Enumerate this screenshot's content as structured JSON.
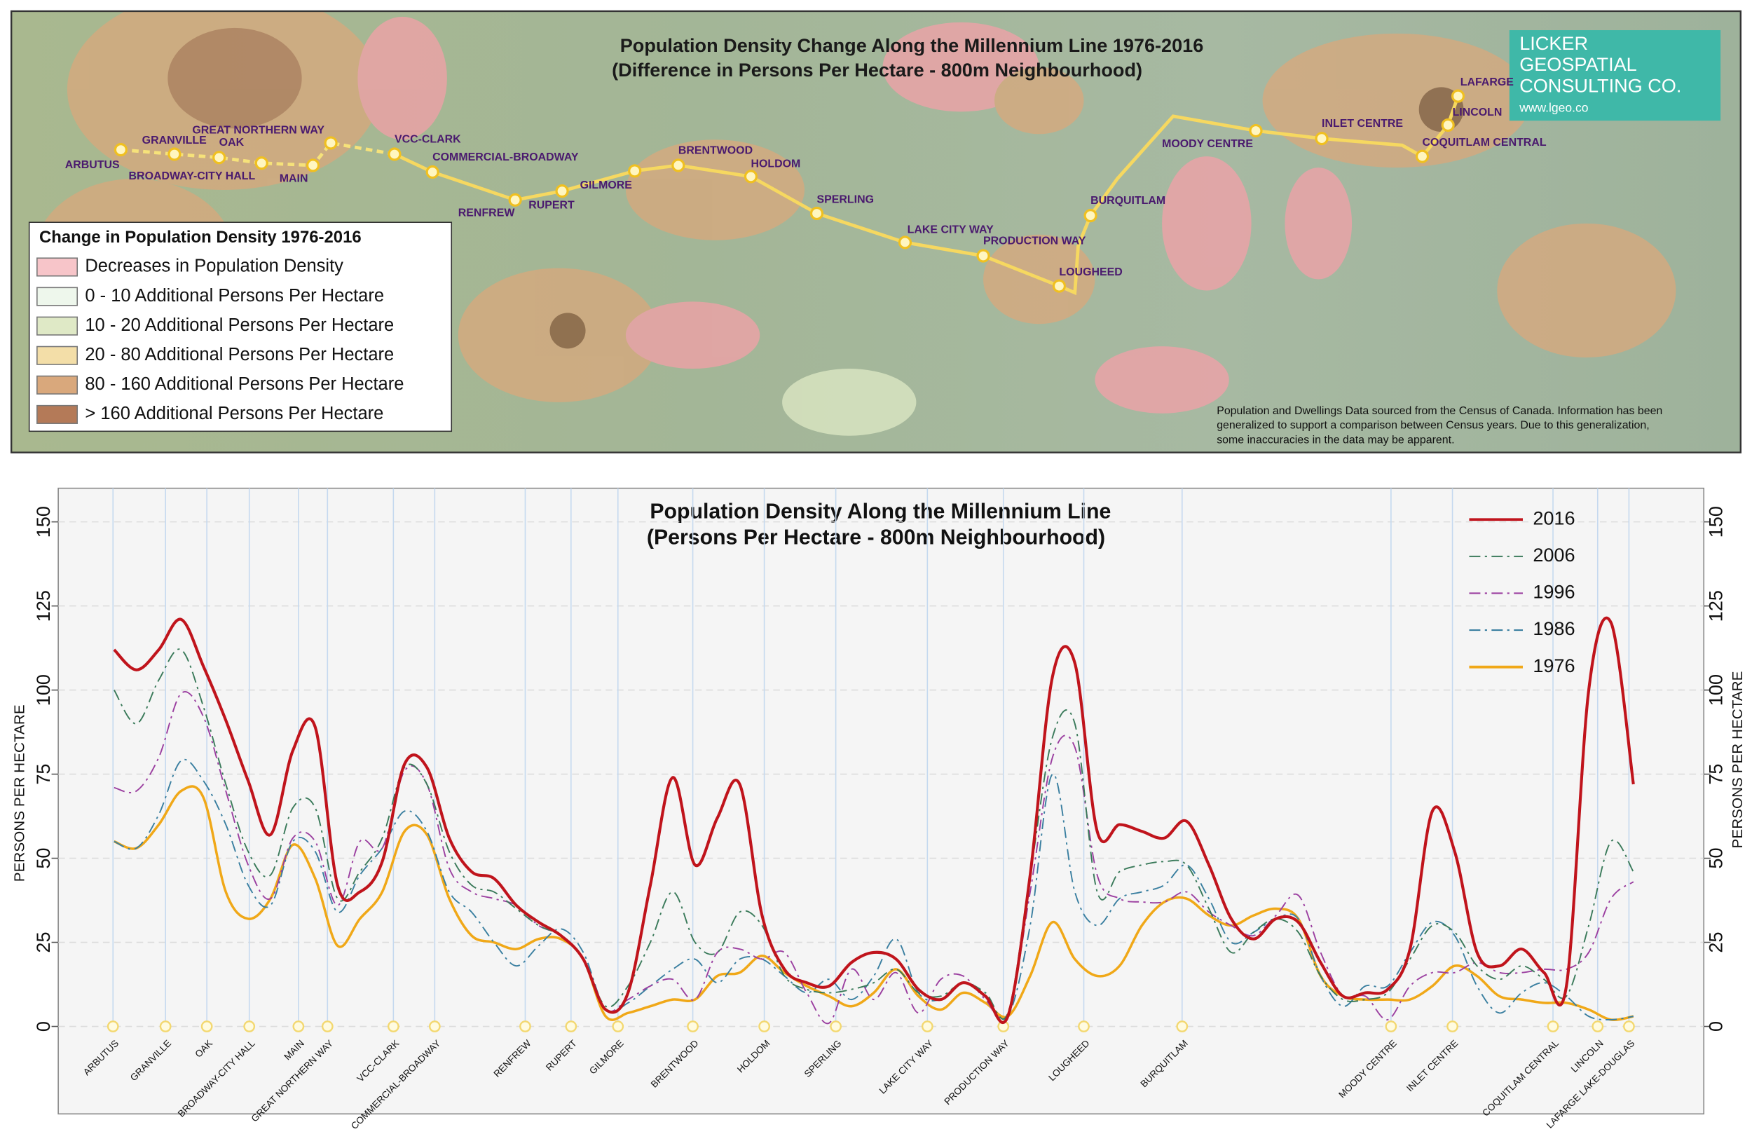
{
  "map": {
    "title": [
      "Population Density Change  Along the Millennium Line 1976-2016",
      "(Difference in Persons Per Hectare - 800m Neighbourhood)"
    ],
    "legend": {
      "title": "Change in Population Density 1976-2016",
      "items": [
        {
          "label": "Decreases in Population Density",
          "color": "#f7c5c9"
        },
        {
          "label": " 0 - 10 Additional Persons Per Hectare",
          "color": "#eef7ec"
        },
        {
          "label": "10 - 20 Additional Persons Per Hectare",
          "color": "#dfe9c6"
        },
        {
          "label": "20 - 80 Additional Persons Per Hectare",
          "color": "#f3dea8"
        },
        {
          "label": "80 - 160 Additional Persons Per Hectare",
          "color": "#d9a87c"
        },
        {
          "label": "> 160 Additional Persons Per Hectare",
          "color": "#b47a58"
        }
      ]
    },
    "stations": [
      "ARBUTUS",
      "GRANVILLE",
      "OAK",
      "BROADWAY-CITY HALL",
      "MAIN",
      "GREAT NORTHERN WAY",
      "VCC-CLARK",
      "COMMERCIAL-BROADWAY",
      "RENFREW",
      "RUPERT",
      "GILMORE",
      "BRENTWOOD",
      "HOLDOM",
      "SPERLING",
      "LAKE CITY WAY",
      "PRODUCTION WAY",
      "LOUGHEED",
      "BURQUITLAM",
      "MOODY CENTRE",
      "INLET CENTRE",
      "COQUITLAM CENTRAL",
      "LINCOLN",
      "LAFARGE"
    ],
    "note": [
      "Population and Dwellings Data sourced from the Census of Canada. Information has been",
      "generalized to support a comparison between Census years.  Due to this generalization,",
      "some inaccuracies in the data may be apparent."
    ],
    "logo": [
      "LICKER",
      "GEOSPATIAL",
      "CONSULTING CO.",
      "www.lgeo.co"
    ]
  },
  "chart_data": {
    "type": "line",
    "title": [
      "Population Density  Along the Millennium Line",
      "(Persons Per Hectare - 800m Neighbourhood)"
    ],
    "ylabel": "PERSONS PER HECTARE",
    "x": [
      5,
      7,
      9,
      11,
      13,
      15,
      17,
      19,
      21,
      23,
      25,
      27,
      29,
      31,
      33,
      35,
      37,
      39,
      41,
      43,
      45,
      47,
      49,
      51,
      53,
      55,
      57,
      59,
      61,
      63,
      65,
      67,
      69,
      71,
      73,
      75,
      77,
      79,
      81,
      83,
      85,
      87,
      89,
      91,
      93,
      95,
      97,
      99,
      101,
      103,
      105,
      107,
      109,
      111,
      113,
      115,
      117,
      119,
      121,
      123,
      125,
      127,
      129,
      131,
      133,
      135,
      137,
      139,
      141
    ],
    "xlim": [
      0,
      147.3
    ],
    "xticks": [
      {
        "value": 4.9,
        "label": "ARBUTUS"
      },
      {
        "value": 9.6,
        "label": "GRANVILLE"
      },
      {
        "value": 13.3,
        "label": "OAK"
      },
      {
        "value": 17.1,
        "label": "BROADWAY-CITY HALL"
      },
      {
        "value": 21.5,
        "label": "MAIN"
      },
      {
        "value": 24.1,
        "label": "GREAT NORTHERN WAY"
      },
      {
        "value": 30,
        "label": "VCC-CLARK"
      },
      {
        "value": 33.7,
        "label": "COMMERCIAL-BROADWAY"
      },
      {
        "value": 41.8,
        "label": "RENFREW"
      },
      {
        "value": 45.9,
        "label": "RUPERT"
      },
      {
        "value": 50.1,
        "label": "GILMORE"
      },
      {
        "value": 56.8,
        "label": "BRENTWOOD"
      },
      {
        "value": 63.2,
        "label": "HOLDOM"
      },
      {
        "value": 69.6,
        "label": "SPERLING"
      },
      {
        "value": 77.8,
        "label": "LAKE CITY WAY"
      },
      {
        "value": 84.6,
        "label": "PRODUCTION WAY"
      },
      {
        "value": 91.8,
        "label": "LOUGHEED"
      },
      {
        "value": 100.6,
        "label": "BURQUITLAM"
      },
      {
        "value": 119.3,
        "label": "MOODY CENTRE"
      },
      {
        "value": 124.8,
        "label": "INLET CENTRE"
      },
      {
        "value": 133.8,
        "label": "COQUITLAM CENTRAL"
      },
      {
        "value": 137.8,
        "label": "LINCOLN"
      },
      {
        "value": 140.6,
        "label": "LAFARGE LAKE-DOUGLAS"
      }
    ],
    "ylim": [
      -26,
      160
    ],
    "yticks": [
      0,
      25,
      50,
      75,
      100,
      125,
      150
    ],
    "grid": true,
    "legend": "upper right",
    "series": [
      {
        "name": "2016",
        "color": "#c0141c",
        "style": "solid",
        "values": [
          112,
          106,
          112,
          121,
          107,
          91,
          73,
          57,
          82,
          89,
          42,
          40,
          49,
          78,
          77,
          56,
          46,
          44,
          36,
          31,
          27,
          20,
          5,
          10,
          42,
          74,
          48,
          62,
          72,
          33,
          17,
          13,
          12,
          19,
          22,
          20,
          11,
          8,
          13,
          9,
          3,
          45,
          104,
          108,
          58,
          60,
          58,
          56,
          61,
          48,
          32,
          26,
          32,
          31,
          19,
          9,
          10,
          11,
          23,
          64,
          52,
          22,
          18,
          23,
          16,
          12,
          100,
          120,
          72
        ]
      },
      {
        "name": "2006",
        "color": "#3a7a5a",
        "style": "dashdot",
        "values": [
          100,
          90,
          103,
          112,
          95,
          72,
          52,
          45,
          65,
          65,
          38,
          46,
          56,
          77,
          72,
          52,
          42,
          40,
          35,
          30,
          27,
          20,
          6,
          12,
          25,
          40,
          25,
          22,
          34,
          30,
          15,
          11,
          10,
          11,
          13,
          17,
          10,
          9,
          13,
          10,
          4,
          45,
          86,
          90,
          40,
          46,
          48,
          49,
          48,
          35,
          22,
          28,
          32,
          28,
          15,
          8,
          8,
          10,
          20,
          30,
          28,
          18,
          14,
          18,
          14,
          9,
          30,
          55,
          46
        ]
      },
      {
        "name": "1996",
        "color": "#9b3fa0",
        "style": "dashdot",
        "values": [
          71,
          70,
          80,
          99,
          92,
          70,
          48,
          38,
          56,
          55,
          36,
          55,
          53,
          76,
          72,
          47,
          40,
          38,
          36,
          30,
          27,
          20,
          5,
          8,
          12,
          14,
          8,
          22,
          23,
          20,
          22,
          10,
          1,
          17,
          8,
          16,
          4,
          14,
          15,
          8,
          3,
          40,
          80,
          83,
          45,
          38,
          37,
          37,
          40,
          34,
          30,
          27,
          33,
          39,
          22,
          9,
          9,
          2,
          12,
          16,
          16,
          19,
          16,
          16,
          17,
          17,
          22,
          38,
          43
        ]
      },
      {
        "name": "1986",
        "color": "#3a7fa0",
        "style": "dashdot",
        "values": [
          55,
          53,
          63,
          79,
          73,
          60,
          42,
          36,
          55,
          52,
          34,
          45,
          53,
          64,
          58,
          40,
          34,
          25,
          18,
          24,
          29,
          22,
          5,
          7,
          12,
          17,
          20,
          13,
          20,
          20,
          15,
          10,
          14,
          8,
          15,
          26,
          10,
          8,
          13,
          9,
          3,
          30,
          75,
          40,
          30,
          38,
          40,
          42,
          48,
          38,
          25,
          28,
          32,
          32,
          15,
          6,
          12,
          12,
          22,
          31,
          27,
          12,
          4,
          10,
          13,
          9,
          3,
          2,
          3
        ]
      },
      {
        "name": "1976",
        "color": "#f0a818",
        "style": "solid",
        "values": [
          55,
          53,
          60,
          70,
          68,
          40,
          32,
          38,
          54,
          44,
          24,
          32,
          40,
          58,
          57,
          38,
          27,
          25,
          23,
          26,
          26,
          20,
          3,
          4,
          6,
          8,
          8,
          15,
          16,
          21,
          16,
          12,
          9,
          6,
          10,
          17,
          9,
          5,
          10,
          7,
          3,
          15,
          31,
          20,
          15,
          18,
          30,
          37,
          38,
          33,
          30,
          33,
          35,
          32,
          15,
          9,
          8,
          8,
          8,
          12,
          18,
          15,
          9,
          8,
          7,
          7,
          5,
          2,
          3
        ]
      }
    ]
  }
}
